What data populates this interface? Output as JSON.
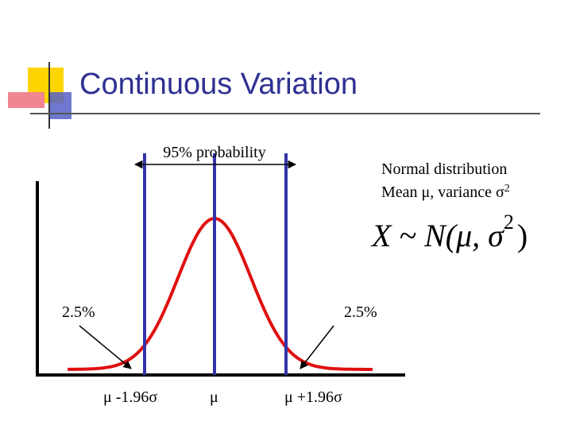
{
  "title": "Continuous Variation",
  "range_label": "95% probability",
  "description": {
    "line1": "Normal distribution",
    "line2": "Mean μ, variance σ",
    "line2_superscript": "2"
  },
  "formula": {
    "main": "X ~ N(μ, σ",
    "exponent": "2",
    "close": ")"
  },
  "tail_labels": {
    "left": "2.5%",
    "right": "2.5%"
  },
  "axis_labels": {
    "lower": "μ -1.96σ",
    "mean": "μ",
    "upper": "μ +1.96σ"
  }
}
